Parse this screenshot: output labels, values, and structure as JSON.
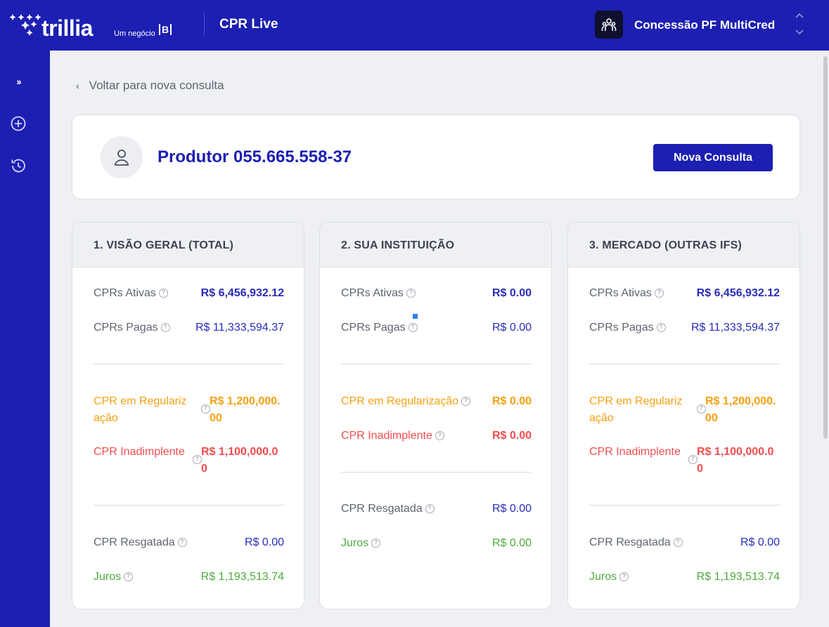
{
  "header": {
    "logo_text": "trillia",
    "logo_sub": "Um negócio",
    "logo_b": "B",
    "app_title": "CPR Live",
    "org_name": "Concessão PF MultiCred"
  },
  "sidebar": {
    "expand_label": "››"
  },
  "back_link": "Voltar para nova consulta",
  "producer": {
    "title": "Produtor 055.665.558-37",
    "new_button": "Nova Consulta"
  },
  "panels": [
    {
      "title": "1. VISÃO GERAL (TOTAL)",
      "ativas_label": "CPRs Ativas",
      "ativas_value": "R$ 6,456,932.12",
      "pagas_label": "CPRs Pagas",
      "pagas_value": "R$ 11,333,594.37",
      "reg_label": "CPR em Regularização",
      "reg_value": "R$ 1,200,000.00",
      "inad_label": "CPR Inadimplente",
      "inad_value": "R$ 1,100,000.00",
      "resg_label": "CPR Resgatada",
      "resg_value": "R$ 0.00",
      "juros_label": "Juros",
      "juros_value": "R$ 1,193,513.74"
    },
    {
      "title": "2. SUA INSTITUIÇÃO",
      "ativas_label": "CPRs Ativas",
      "ativas_value": "R$ 0.00",
      "pagas_label": "CPRs Pagas",
      "pagas_value": "R$ 0.00",
      "reg_label": "CPR em Regularização",
      "reg_value": "R$ 0.00",
      "inad_label": "CPR Inadimplente",
      "inad_value": "R$ 0.00",
      "resg_label": "CPR Resgatada",
      "resg_value": "R$ 0.00",
      "juros_label": "Juros",
      "juros_value": "R$ 0.00"
    },
    {
      "title": "3. MERCADO (OUTRAS IFS)",
      "ativas_label": "CPRs Ativas",
      "ativas_value": "R$ 6,456,932.12",
      "pagas_label": "CPRs Pagas",
      "pagas_value": "R$ 11,333,594.37",
      "reg_label": "CPR em Regularização",
      "reg_value": "R$ 1,200,000.00",
      "inad_label": "CPR Inadimplente",
      "inad_value": "R$ 1,100,000.00",
      "resg_label": "CPR Resgatada",
      "resg_value": "R$ 0.00",
      "juros_label": "Juros",
      "juros_value": "R$ 1,193,513.74"
    }
  ],
  "help_glyph": "?",
  "colors": {
    "brand": "#1c1fb1",
    "blue_value": "#2a2db8",
    "orange": "#f5a012",
    "red": "#f24d4d",
    "green": "#4cab3c"
  }
}
